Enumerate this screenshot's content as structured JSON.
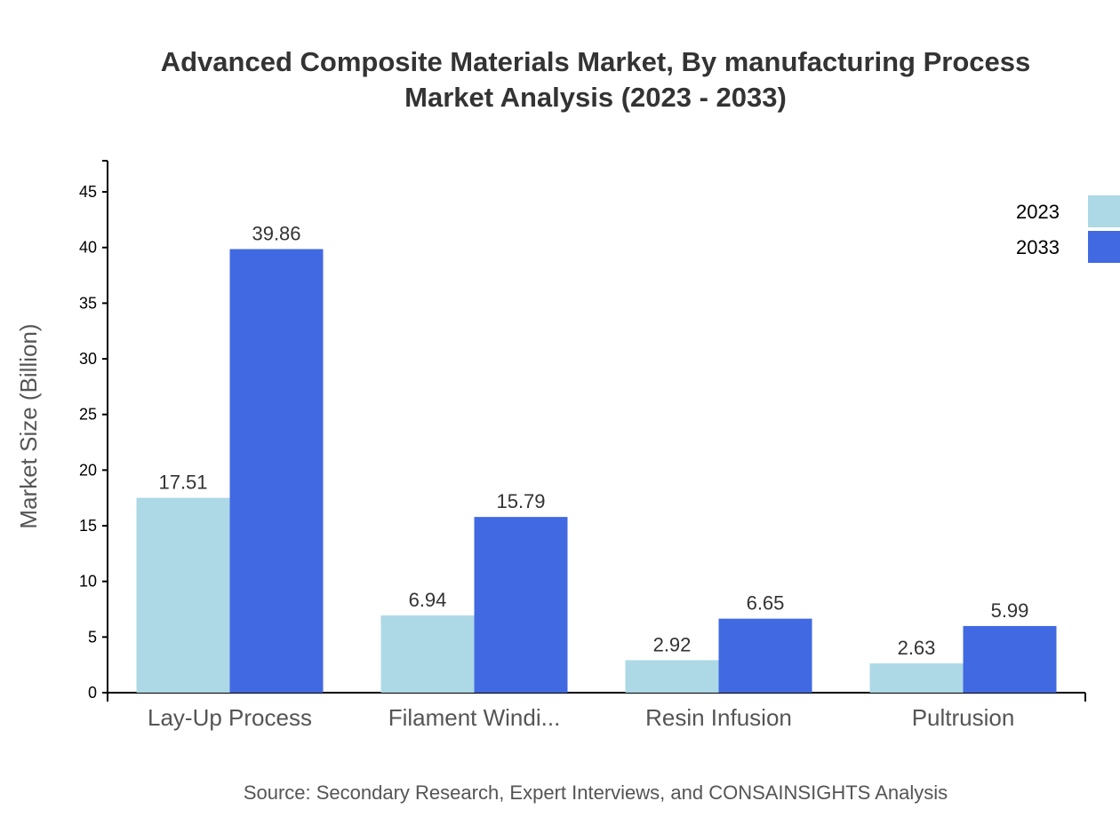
{
  "chart_data": {
    "type": "bar",
    "title": "Advanced Composite Materials Market, By manufacturing Process",
    "subtitle": "Market Analysis (2023 - 2033)",
    "xlabel": "",
    "ylabel": "Market Size (Billion)",
    "ylim": [
      0,
      47.8
    ],
    "yticks": [
      0,
      5,
      10,
      15,
      20,
      25,
      30,
      35,
      40,
      45
    ],
    "grid": false,
    "legend_position": "top-right",
    "categories": [
      "Lay-Up Process",
      "Filament Windi...",
      "Resin Infusion",
      "Pultrusion"
    ],
    "series": [
      {
        "name": "2023",
        "color": "#add8e6",
        "values": [
          17.51,
          6.94,
          2.92,
          2.63
        ]
      },
      {
        "name": "2033",
        "color": "#4169e1",
        "values": [
          39.86,
          15.79,
          6.65,
          5.99
        ]
      }
    ],
    "source": "Source: Secondary Research, Expert Interviews, and CONSAINSIGHTS Analysis"
  }
}
